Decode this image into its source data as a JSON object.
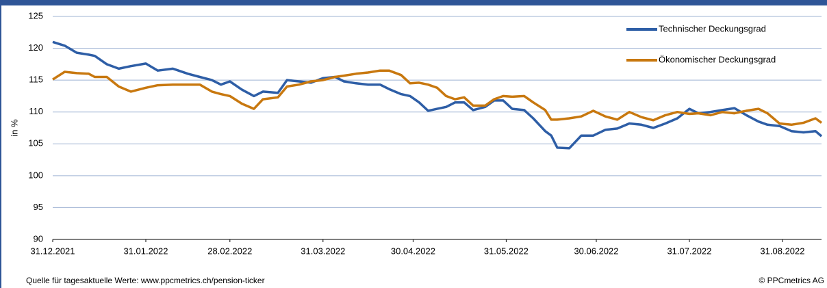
{
  "chart_data": {
    "type": "line",
    "x": [
      "31.12.2021",
      "04.01.2022",
      "08.01.2022",
      "12.01.2022",
      "14.01.2022",
      "18.01.2022",
      "22.01.2022",
      "26.01.2022",
      "31.01.2022",
      "04.02.2022",
      "09.02.2022",
      "14.02.2022",
      "18.02.2022",
      "22.02.2022",
      "25.02.2022",
      "28.02.2022",
      "04.03.2022",
      "08.03.2022",
      "11.03.2022",
      "16.03.2022",
      "19.03.2022",
      "23.03.2022",
      "27.03.2022",
      "31.03.2022",
      "04.04.2022",
      "07.04.2022",
      "11.04.2022",
      "15.04.2022",
      "19.04.2022",
      "22.04.2022",
      "26.04.2022",
      "29.04.2022",
      "02.05.2022",
      "05.05.2022",
      "08.05.2022",
      "11.05.2022",
      "14.05.2022",
      "17.05.2022",
      "20.05.2022",
      "24.05.2022",
      "27.05.2022",
      "30.05.2022",
      "02.06.2022",
      "06.06.2022",
      "09.06.2022",
      "13.06.2022",
      "15.06.2022",
      "17.06.2022",
      "21.06.2022",
      "25.06.2022",
      "29.06.2022",
      "03.07.2022",
      "07.07.2022",
      "11.07.2022",
      "15.07.2022",
      "19.07.2022",
      "23.07.2022",
      "27.07.2022",
      "31.07.2022",
      "03.08.2022",
      "07.08.2022",
      "11.08.2022",
      "15.08.2022",
      "19.08.2022",
      "23.08.2022",
      "26.08.2022",
      "30.08.2022",
      "03.09.2022",
      "07.09.2022",
      "11.09.2022",
      "13.09.2022"
    ],
    "series": [
      {
        "name": "Technischer Deckungsgrad",
        "color": "#2e5ea6",
        "values": [
          121.0,
          120.4,
          119.3,
          119.0,
          118.8,
          117.5,
          116.8,
          117.2,
          117.6,
          116.5,
          116.8,
          116.0,
          115.5,
          115.0,
          114.3,
          114.8,
          113.5,
          112.5,
          113.2,
          113.0,
          115.0,
          114.8,
          114.6,
          115.3,
          115.5,
          114.8,
          114.5,
          114.3,
          114.3,
          113.6,
          112.8,
          112.5,
          111.5,
          110.2,
          110.5,
          110.8,
          111.5,
          111.5,
          110.3,
          110.8,
          111.8,
          111.8,
          110.5,
          110.3,
          109.0,
          107.0,
          106.3,
          104.4,
          104.3,
          106.3,
          106.3,
          107.2,
          107.4,
          108.2,
          108.0,
          107.5,
          108.2,
          109.0,
          110.5,
          109.8,
          110.0,
          110.3,
          110.6,
          109.5,
          108.5,
          108.0,
          107.8,
          107.0,
          106.8,
          107.0,
          106.2
        ]
      },
      {
        "name": "Ökonomischer Deckungsgrad",
        "color": "#c8780f",
        "values": [
          115.1,
          116.3,
          116.1,
          116.0,
          115.5,
          115.5,
          114.0,
          113.2,
          113.8,
          114.2,
          114.3,
          114.3,
          114.3,
          113.2,
          112.8,
          112.5,
          111.3,
          110.5,
          112.0,
          112.3,
          114.0,
          114.3,
          114.8,
          115.0,
          115.5,
          115.7,
          116.0,
          116.2,
          116.5,
          116.5,
          115.8,
          114.5,
          114.6,
          114.3,
          113.8,
          112.5,
          112.0,
          112.3,
          111.0,
          111.0,
          112.0,
          112.5,
          112.4,
          112.5,
          111.5,
          110.3,
          108.8,
          108.8,
          109.0,
          109.3,
          110.2,
          109.3,
          108.8,
          110.0,
          109.2,
          108.7,
          109.5,
          110.0,
          109.7,
          109.8,
          109.5,
          110.0,
          109.8,
          110.2,
          110.5,
          109.8,
          108.2,
          108.0,
          108.3,
          109.0,
          108.3
        ]
      }
    ],
    "xlim": [
      "31.12.2021",
      "13.09.2022"
    ],
    "xticks": [
      "31.12.2021",
      "31.01.2022",
      "28.02.2022",
      "31.03.2022",
      "30.04.2022",
      "31.05.2022",
      "30.06.2022",
      "31.07.2022",
      "31.08.2022"
    ],
    "ylim": [
      90,
      125
    ],
    "yticks": [
      90,
      95,
      100,
      105,
      110,
      115,
      120,
      125
    ],
    "ylabel": "in %",
    "grid": true,
    "legend": "top-right"
  },
  "footer": {
    "source": "Quelle für tagesaktuelle Werte: www.ppcmetrics.ch/pension-ticker",
    "copyright": "© PPCmetrics AG"
  }
}
